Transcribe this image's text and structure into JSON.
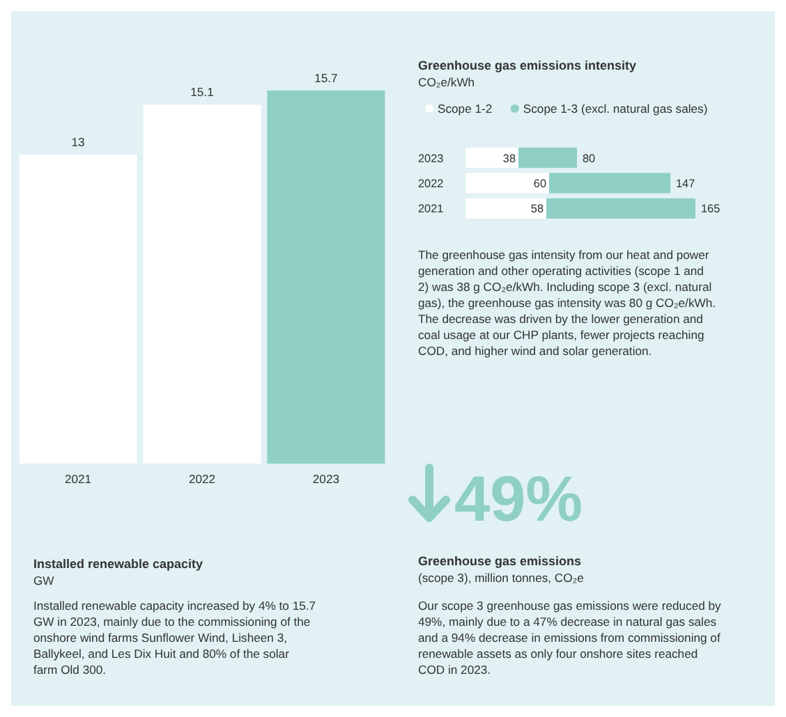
{
  "chart_data": [
    {
      "type": "bar",
      "title": "Installed renewable capacity",
      "subtitle": "GW",
      "categories": [
        "2021",
        "2022",
        "2023"
      ],
      "values": [
        13,
        15.1,
        15.7
      ],
      "colors": [
        "#ffffff",
        "#ffffff",
        "#8fcfc6"
      ],
      "data_labels": true,
      "annotations": [
        "Installed renewable capacity increased by 4% to 15.7 GW in 2023, mainly due to the commissioning of the onshore wind farms Sunflower Wind, Lisheen 3, Ballykeel, and Les Dix Huit and 80% of the solar farm Old 300."
      ]
    },
    {
      "type": "bar",
      "orientation": "horizontal",
      "stacked": true,
      "totals": [
        "80",
        "147",
        "165"
      ],
      "title": "Greenhouse gas emissions intensity",
      "subtitle": "CO₂e/kWh",
      "categories": [
        "2023",
        "2022",
        "2021"
      ],
      "legend": "top",
      "series": [
        {
          "name": "Scope 1-2",
          "color": "#ffffff",
          "values": [
            38,
            60,
            58
          ],
          "value_labels": [
            "38",
            "60",
            "58"
          ]
        },
        {
          "name": "Scope 1-3 (excl. natural gas sales)",
          "color": "#8fcfc6",
          "values": [
            42,
            87,
            107
          ]
        }
      ],
      "annotations": [
        "The greenhouse gas intensity from our heat and power generation and other operating activities (scope 1 and 2) was 38 g CO₂e/kWh. Including scope 3 (excl. natural gas), the greenhouse gas intensity was 80 g CO₂e/kWh. The decrease was driven by the lower generation and coal usage at our CHP plants, fewer projects reaching COD, and higher wind and solar generation."
      ]
    },
    {
      "type": "other",
      "title": "Greenhouse gas emissions",
      "subtitle": "(scope 3), million tonnes, CO₂e",
      "annotations": [
        "49%",
        "Our scope 3 greenhouse gas emissions were reduced by 49%, mainly due to a 47% decrease in natural gas sales and a 94% decrease in emissions from commissioning of renewable assets as only four onshore sites reached COD in 2023."
      ]
    }
  ]
}
